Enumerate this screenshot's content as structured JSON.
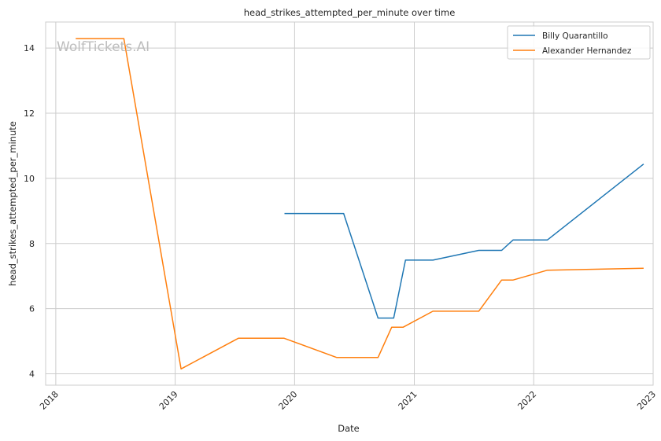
{
  "chart_data": {
    "type": "line",
    "title": "head_strikes_attempted_per_minute over time",
    "xlabel": "Date",
    "ylabel": "head_strikes_attempted_per_minute",
    "watermark": "WolfTickets.AI",
    "xlim": [
      "2017-12-01",
      "2023-01-01"
    ],
    "ylim": [
      3.65,
      14.8
    ],
    "x_ticks": [
      "2018-01-01",
      "2019-01-01",
      "2020-01-01",
      "2021-01-01",
      "2022-01-01",
      "2023-01-01"
    ],
    "x_tick_labels": [
      "2018",
      "2019",
      "2020",
      "2021",
      "2022",
      "2023"
    ],
    "y_ticks": [
      4,
      6,
      8,
      10,
      12,
      14
    ],
    "y_tick_labels": [
      "4",
      "6",
      "8",
      "10",
      "12",
      "14"
    ],
    "grid": true,
    "legend": "top-right",
    "series": [
      {
        "name": "Billy Quarantillo",
        "color": "#1f77b4",
        "points": [
          [
            "2019-12-01",
            8.92
          ],
          [
            "2020-05-30",
            8.92
          ],
          [
            "2020-09-12",
            5.71
          ],
          [
            "2020-10-30",
            5.71
          ],
          [
            "2020-12-05",
            7.49
          ],
          [
            "2021-02-27",
            7.49
          ],
          [
            "2021-07-17",
            7.79
          ],
          [
            "2021-09-25",
            7.79
          ],
          [
            "2021-10-30",
            8.11
          ],
          [
            "2022-02-12",
            8.11
          ],
          [
            "2022-12-03",
            10.44
          ]
        ]
      },
      {
        "name": "Alexander Hernandez",
        "color": "#ff7f0e",
        "points": [
          [
            "2018-03-03",
            14.29
          ],
          [
            "2018-07-28",
            14.29
          ],
          [
            "2019-01-19",
            4.15
          ],
          [
            "2019-07-13",
            5.09
          ],
          [
            "2019-11-30",
            5.09
          ],
          [
            "2020-05-09",
            4.5
          ],
          [
            "2020-09-12",
            4.5
          ],
          [
            "2020-10-24",
            5.43
          ],
          [
            "2020-11-28",
            5.43
          ],
          [
            "2021-02-27",
            5.92
          ],
          [
            "2021-07-17",
            5.92
          ],
          [
            "2021-09-25",
            6.88
          ],
          [
            "2021-10-30",
            6.88
          ],
          [
            "2022-02-12",
            7.18
          ],
          [
            "2022-12-03",
            7.24
          ]
        ]
      }
    ]
  }
}
